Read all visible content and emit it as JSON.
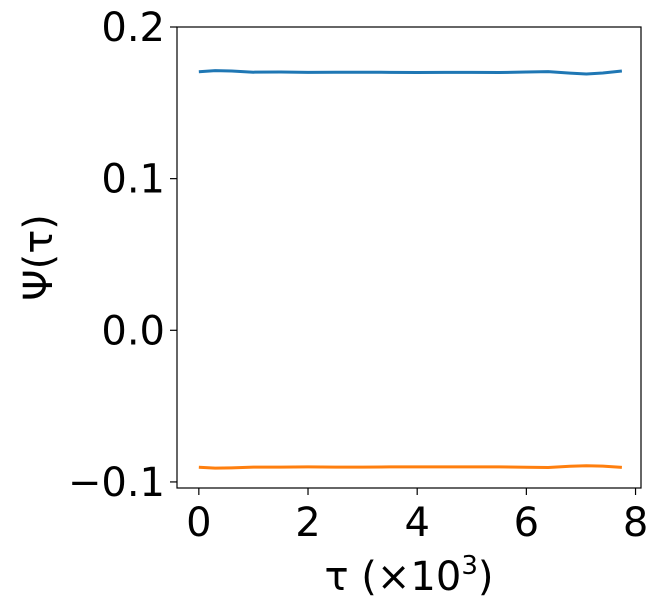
{
  "chart_data": {
    "type": "line",
    "xlabel": "τ (×10",
    "xlabel_exponent": "3",
    "xlabel_close": ")",
    "ylabel": "Ψ(τ)",
    "xlim": [
      -0.4,
      8.1
    ],
    "ylim": [
      -0.104,
      0.2
    ],
    "x_ticks": [
      0,
      2,
      4,
      6,
      8
    ],
    "x_tick_labels": [
      "0",
      "2",
      "4",
      "6",
      "8"
    ],
    "y_ticks": [
      -0.1,
      0.0,
      0.1,
      0.2
    ],
    "y_tick_labels": [
      "−0.1",
      "0.0",
      "0.1",
      "0.2"
    ],
    "grid": false,
    "series": [
      {
        "color": "#1f77b4",
        "x": [
          0,
          0.3,
          0.6,
          1.0,
          1.5,
          2.0,
          2.5,
          3.0,
          3.5,
          4.0,
          4.5,
          5.0,
          5.5,
          6.0,
          6.4,
          6.8,
          7.1,
          7.4,
          7.75
        ],
        "y": [
          0.1705,
          0.1712,
          0.171,
          0.1702,
          0.1703,
          0.1701,
          0.1702,
          0.1702,
          0.1701,
          0.17,
          0.1701,
          0.1701,
          0.17,
          0.1703,
          0.1706,
          0.1696,
          0.169,
          0.1697,
          0.171
        ]
      },
      {
        "color": "#ff7f0e",
        "x": [
          0,
          0.3,
          0.6,
          1.0,
          1.5,
          2.0,
          2.5,
          3.0,
          3.5,
          4.0,
          4.5,
          5.0,
          5.5,
          6.0,
          6.4,
          6.8,
          7.1,
          7.4,
          7.75
        ],
        "y": [
          -0.0903,
          -0.0909,
          -0.0907,
          -0.0902,
          -0.0902,
          -0.0901,
          -0.0902,
          -0.0902,
          -0.0901,
          -0.0901,
          -0.0901,
          -0.0901,
          -0.0901,
          -0.0903,
          -0.0905,
          -0.0897,
          -0.0893,
          -0.0896,
          -0.0904
        ]
      }
    ]
  }
}
